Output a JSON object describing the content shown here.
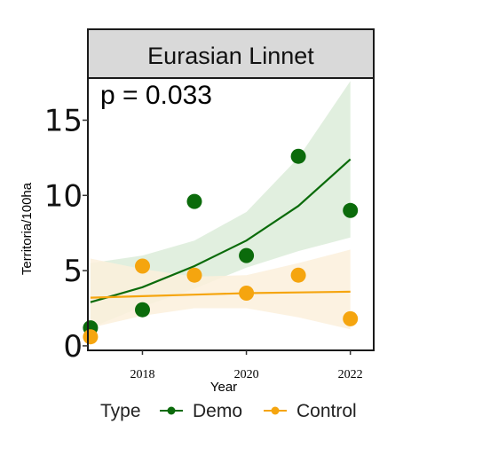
{
  "chart_data": {
    "type": "scatter",
    "facet_title": "Eurasian Linnet",
    "annotation": "p = 0.033",
    "xlabel": "Year",
    "ylabel": "Territoria/100ha",
    "xlim": [
      2016.95,
      2022.45
    ],
    "ylim": [
      -0.3,
      17.8
    ],
    "x_ticks": [
      2018,
      2020,
      2022
    ],
    "x_tick_labels": [
      "2018",
      "2020",
      "2022"
    ],
    "y_ticks": [
      0,
      5,
      10,
      15
    ],
    "y_tick_labels": [
      "0",
      "5",
      "10",
      "15"
    ],
    "grid": false,
    "legend": {
      "title": "Type",
      "position": "bottom",
      "entries": [
        {
          "label": "Demo",
          "color": "#0b6b0b"
        },
        {
          "label": "Control",
          "color": "#f5a50f"
        }
      ]
    },
    "series": [
      {
        "name": "Demo",
        "color": "#0b6b0b",
        "band_color": "#dcecd9",
        "points": [
          {
            "x": 2017,
            "y": 1.2
          },
          {
            "x": 2018,
            "y": 2.4
          },
          {
            "x": 2019,
            "y": 9.6
          },
          {
            "x": 2020,
            "y": 6.0
          },
          {
            "x": 2021,
            "y": 12.6
          },
          {
            "x": 2022,
            "y": 9.0
          }
        ],
        "fit": [
          {
            "x": 2017,
            "y": 2.9,
            "lo": 1.2,
            "hi": 5.5
          },
          {
            "x": 2018,
            "y": 3.9,
            "lo": 2.6,
            "hi": 6.0
          },
          {
            "x": 2019,
            "y": 5.3,
            "lo": 3.8,
            "hi": 7.0
          },
          {
            "x": 2020,
            "y": 7.0,
            "lo": 5.2,
            "hi": 8.9
          },
          {
            "x": 2021,
            "y": 9.3,
            "lo": 6.3,
            "hi": 12.5
          },
          {
            "x": 2022,
            "y": 12.4,
            "lo": 7.2,
            "hi": 17.6
          }
        ]
      },
      {
        "name": "Control",
        "color": "#f5a50f",
        "band_color": "#fbf0dc",
        "points": [
          {
            "x": 2017,
            "y": 0.6
          },
          {
            "x": 2018,
            "y": 5.3
          },
          {
            "x": 2019,
            "y": 4.7
          },
          {
            "x": 2020,
            "y": 3.5
          },
          {
            "x": 2021,
            "y": 4.7
          },
          {
            "x": 2022,
            "y": 1.8
          }
        ],
        "fit": [
          {
            "x": 2017,
            "y": 3.2,
            "lo": 1.2,
            "hi": 5.8
          },
          {
            "x": 2018,
            "y": 3.3,
            "lo": 2.0,
            "hi": 5.1
          },
          {
            "x": 2019,
            "y": 3.4,
            "lo": 2.5,
            "hi": 4.6
          },
          {
            "x": 2020,
            "y": 3.5,
            "lo": 2.5,
            "hi": 4.7
          },
          {
            "x": 2021,
            "y": 3.55,
            "lo": 1.9,
            "hi": 5.5
          },
          {
            "x": 2022,
            "y": 3.6,
            "lo": 1.1,
            "hi": 6.4
          }
        ]
      }
    ]
  }
}
